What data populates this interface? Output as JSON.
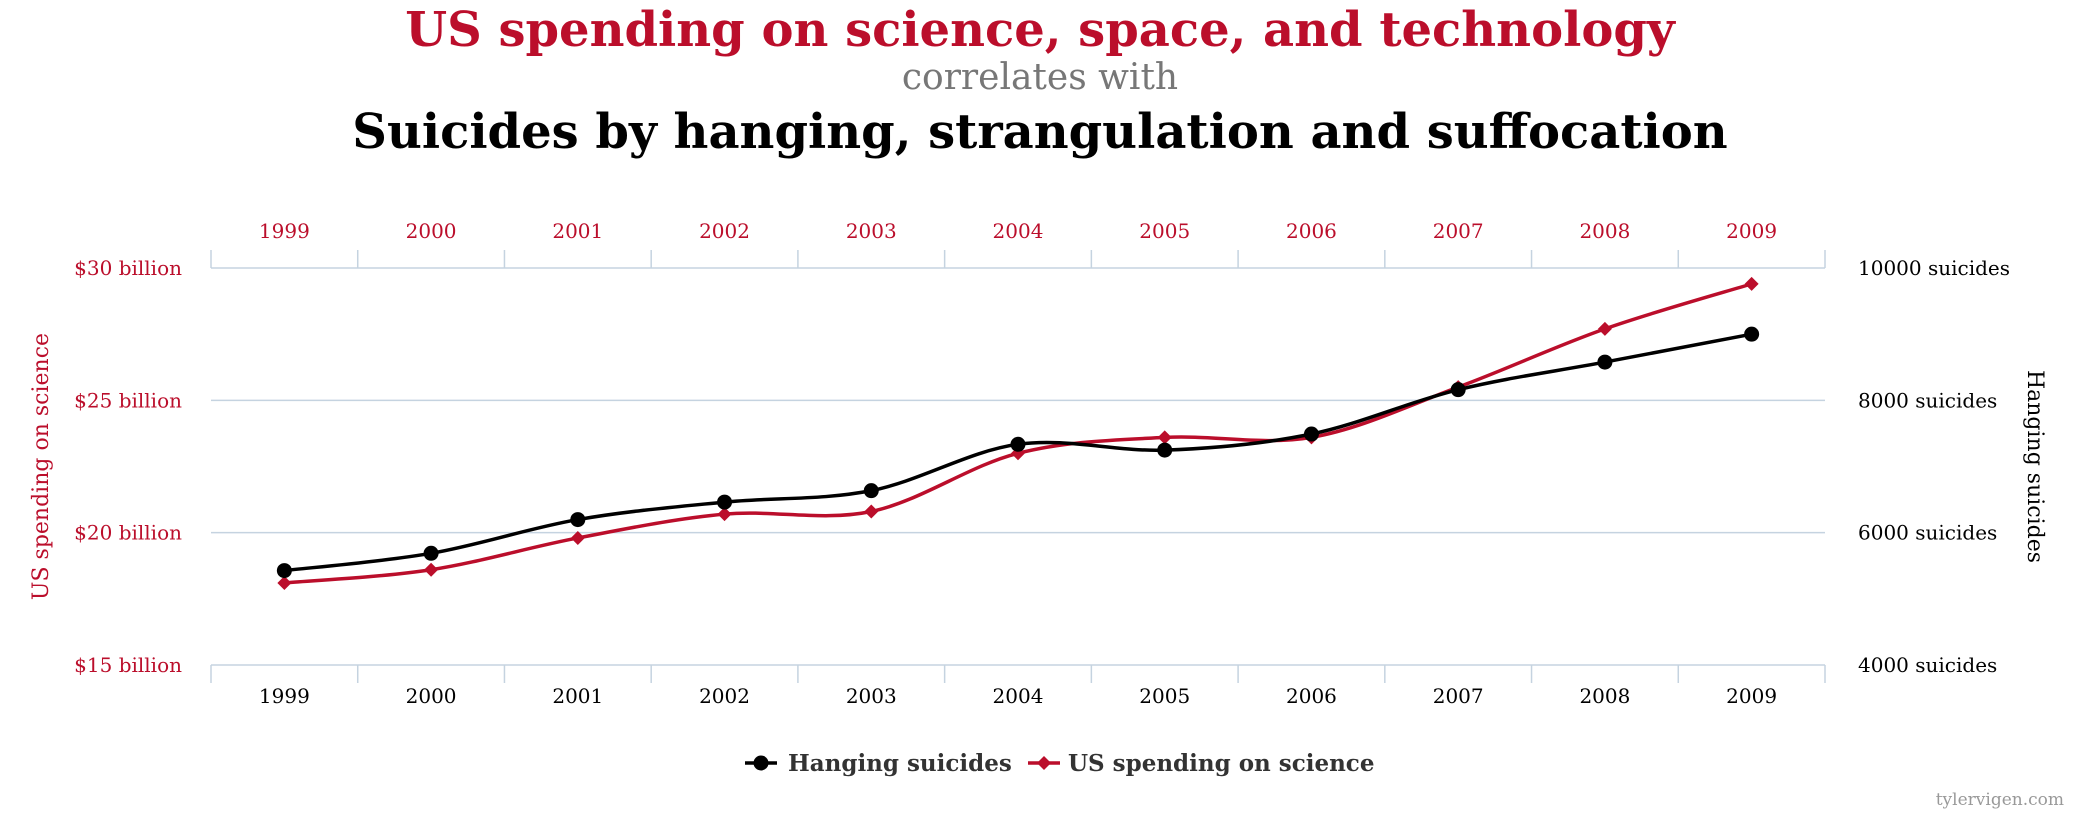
{
  "header": {
    "title": "US spending on science, space, and technology",
    "connector": "correlates with",
    "subtitle": "Suicides by hanging, strangulation and suffocation"
  },
  "credit": "tylervigen.com",
  "colors": {
    "red": "#bb0e2b",
    "black": "#000000",
    "grid": "#c5d3e0"
  },
  "chart_data": {
    "type": "line",
    "categories": [
      "1999",
      "2000",
      "2001",
      "2002",
      "2003",
      "2004",
      "2005",
      "2006",
      "2007",
      "2008",
      "2009"
    ],
    "left_axis": {
      "label": "US spending on science",
      "ticks": [
        15,
        20,
        25,
        30
      ],
      "tick_labels": [
        "$15 billion",
        "$20 billion",
        "$25 billion",
        "$30 billion"
      ],
      "range": [
        15,
        30
      ]
    },
    "right_axis": {
      "label": "Hanging suicides",
      "ticks": [
        4000,
        6000,
        8000,
        10000
      ],
      "tick_labels": [
        "4000 suicides",
        "6000 suicides",
        "8000 suicides",
        "10000 suicides"
      ],
      "range": [
        4000,
        10000
      ]
    },
    "series": [
      {
        "name": "Hanging suicides",
        "axis": "right",
        "color": "#000000",
        "marker": "circle",
        "values": [
          5427,
          5688,
          6198,
          6462,
          6635,
          7336,
          7248,
          7491,
          8161,
          8578,
          9000
        ]
      },
      {
        "name": "US spending on science",
        "axis": "left",
        "color": "#bb0e2b",
        "marker": "diamond",
        "values": [
          18.1,
          18.6,
          19.8,
          20.7,
          20.8,
          23.0,
          23.6,
          23.6,
          25.5,
          27.7,
          29.4
        ]
      }
    ],
    "grid": true,
    "legend_position": "bottom-center"
  }
}
